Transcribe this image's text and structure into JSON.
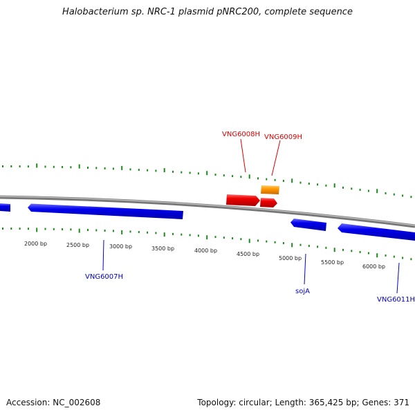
{
  "title": "Halobacterium sp. NRC-1 plasmid pNRC200, complete sequence",
  "footer": {
    "accession": "Accession: NC_002608",
    "summary": "Topology: circular; Length: 365,425 bp; Genes: 371"
  },
  "colors": {
    "backbone": "#8a8a8a",
    "tick": "#1a8a1a",
    "forward_gene": "#ee0000",
    "reverse_gene": "#0000ee",
    "rna_gene": "#ff9900",
    "forward_label": "#dd0000",
    "reverse_label": "#0000cc"
  },
  "scale_labels": [
    "2000 bp",
    "2500 bp",
    "3000 bp",
    "3500 bp",
    "4000 bp",
    "4500 bp",
    "5000 bp",
    "5500 bp",
    "6000 bp"
  ],
  "genes": [
    {
      "name": "",
      "strand": "reverse",
      "kind": "cds"
    },
    {
      "name": "VNG6007H",
      "strand": "reverse",
      "kind": "cds"
    },
    {
      "name": "VNG6008H",
      "strand": "forward",
      "kind": "cds"
    },
    {
      "name": "VNG6009H",
      "strand": "forward",
      "kind": "cds"
    },
    {
      "name": "",
      "strand": "forward",
      "kind": "rna"
    },
    {
      "name": "sojA",
      "strand": "reverse",
      "kind": "cds"
    },
    {
      "name": "VNG6011H",
      "strand": "reverse",
      "kind": "cds"
    }
  ]
}
